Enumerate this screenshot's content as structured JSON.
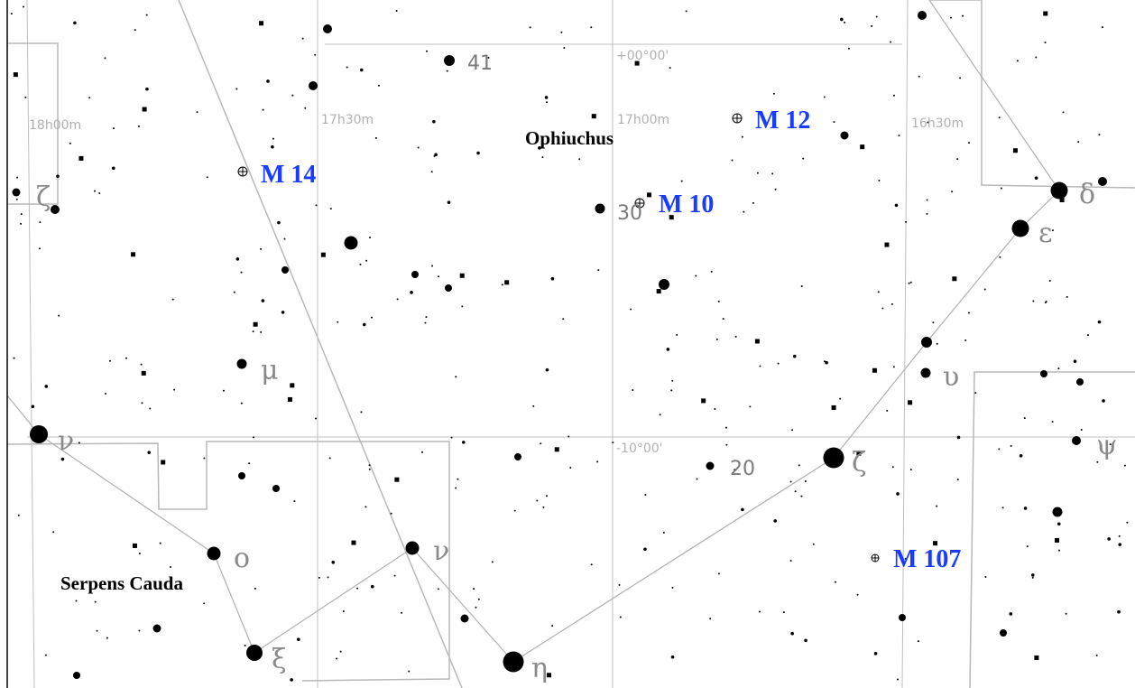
{
  "map": {
    "constellations": [
      "Ophiuchus",
      "Serpens Cauda"
    ],
    "ra_labels": [
      "18h00m",
      "17h30m",
      "17h00m",
      "16h30m"
    ],
    "dec_labels": [
      "+00°00'",
      "-10°00'"
    ],
    "messier": [
      "M  14",
      "M  10",
      "M  12",
      "M 107"
    ],
    "greek_labels": [
      "ζ",
      "μ",
      "ν",
      "ο",
      "ν",
      "ξ",
      "η",
      "ζ",
      "υ",
      "ψ",
      "δ",
      "ε"
    ],
    "flamsteed_labels": [
      "41",
      "30",
      "20"
    ],
    "colors": {
      "messier": "#1a3cff",
      "lines": "#b8b8b8",
      "stars": "#000000",
      "background": "#ffffff"
    }
  }
}
